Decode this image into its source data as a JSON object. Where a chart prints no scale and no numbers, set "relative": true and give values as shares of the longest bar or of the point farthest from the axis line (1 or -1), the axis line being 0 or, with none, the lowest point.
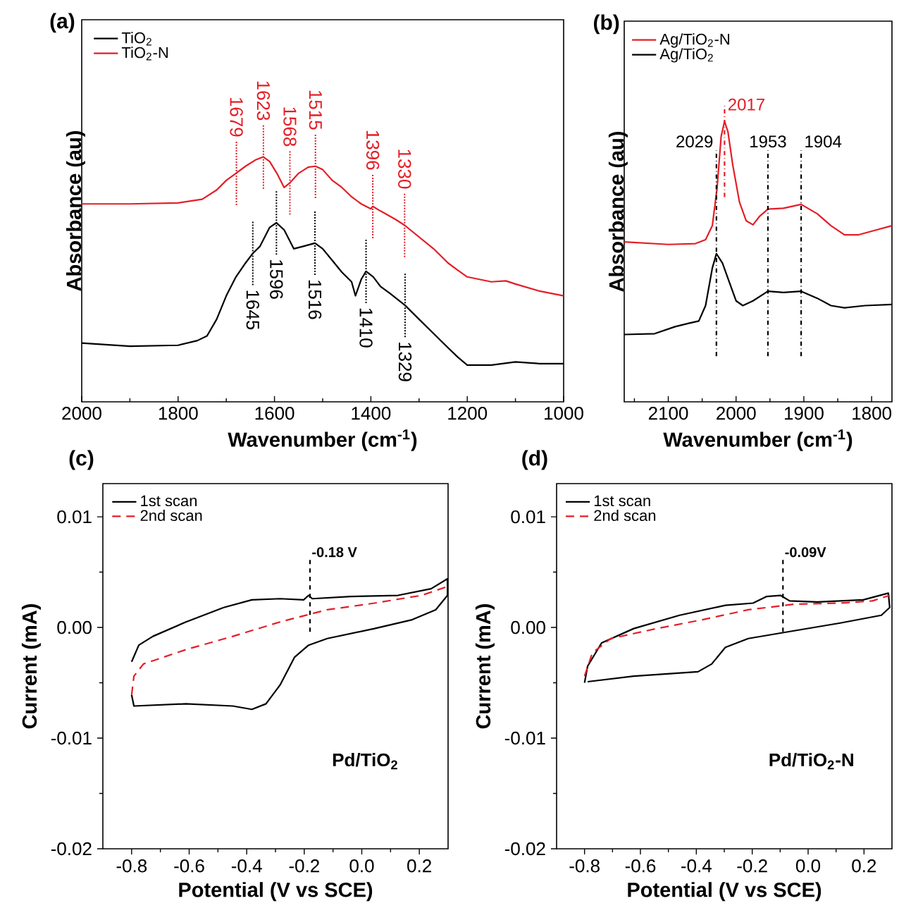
{
  "chart_data": [
    {
      "type": "line",
      "title": "(a)",
      "xlabel": "Wavenumber (cm$^{-1}$)",
      "ylabel": "Absorbance (au)",
      "relative": true,
      "legend": "top left",
      "xlim": [
        2000,
        1000
      ],
      "xticks": [
        2000,
        {
          "value": 1900,
          "label": null
        },
        1800,
        {
          "value": 1700,
          "label": null
        },
        1600,
        {
          "value": 1500,
          "label": null
        },
        1400,
        {
          "value": 1300,
          "label": null
        },
        1200,
        {
          "value": 1100,
          "label": null
        },
        1000
      ],
      "series": [
        {
          "name": "TiO$_{2}$",
          "color": "#000000",
          "x": [
            2000,
            1900,
            1800,
            1760,
            1740,
            1720,
            1700,
            1680,
            1660,
            1645,
            1630,
            1610,
            1596,
            1580,
            1560,
            1540,
            1516,
            1500,
            1480,
            1460,
            1440,
            1432,
            1420,
            1410,
            1395,
            1380,
            1360,
            1329,
            1300,
            1270,
            1240,
            1220,
            1200,
            1150,
            1100,
            1050,
            1000
          ],
          "values": [
            0.24,
            0.227,
            0.231,
            0.25,
            0.269,
            0.337,
            0.433,
            0.51,
            0.567,
            0.606,
            0.635,
            0.712,
            0.731,
            0.702,
            0.625,
            0.635,
            0.648,
            0.625,
            0.577,
            0.529,
            0.49,
            0.433,
            0.5,
            0.533,
            0.51,
            0.471,
            0.442,
            0.394,
            0.337,
            0.279,
            0.221,
            0.183,
            0.15,
            0.15,
            0.163,
            0.156,
            0.156
          ]
        },
        {
          "name": "TiO$_{2}$-N",
          "color": "#e41e26",
          "x": [
            2000,
            1900,
            1800,
            1750,
            1720,
            1700,
            1680,
            1660,
            1640,
            1623,
            1610,
            1595,
            1580,
            1568,
            1550,
            1530,
            1515,
            1500,
            1480,
            1460,
            1440,
            1420,
            1400,
            1396,
            1380,
            1350,
            1330,
            1300,
            1270,
            1240,
            1220,
            1200,
            1150,
            1120,
            1100,
            1050,
            1000
          ],
          "values": [
            0.808,
            0.808,
            0.812,
            0.827,
            0.865,
            0.904,
            0.933,
            0.962,
            0.987,
            1.0,
            0.981,
            0.933,
            0.875,
            0.894,
            0.933,
            0.958,
            0.962,
            0.948,
            0.904,
            0.875,
            0.837,
            0.808,
            0.788,
            0.798,
            0.779,
            0.746,
            0.721,
            0.673,
            0.625,
            0.567,
            0.538,
            0.51,
            0.49,
            0.494,
            0.481,
            0.452,
            0.433
          ]
        }
      ],
      "annotations": [
        {
          "text": "1679",
          "x": 1679,
          "y": 0.933
        },
        {
          "text": "1623",
          "x": 1623,
          "y": 1.0
        },
        {
          "text": "1568",
          "x": 1568,
          "y": 0.894
        },
        {
          "text": "1515",
          "x": 1515,
          "y": 0.962
        },
        {
          "text": "1396",
          "x": 1396,
          "y": 0.798
        },
        {
          "text": "1330",
          "x": 1330,
          "y": 0.721
        },
        {
          "text": "1645",
          "x": 1645,
          "y": 0.606
        },
        {
          "text": "1596",
          "x": 1596,
          "y": 0.731
        },
        {
          "text": "1516",
          "x": 1516,
          "y": 0.648
        },
        {
          "text": "1410",
          "x": 1410,
          "y": 0.533
        },
        {
          "text": "1329",
          "x": 1329,
          "y": 0.394
        }
      ]
    },
    {
      "type": "line",
      "title": "(b)",
      "xlabel": "Wavenumber (cm$^{-1}$)",
      "ylabel": "Absorbance (au)",
      "relative": true,
      "legend": "top left",
      "xlim": [
        2165,
        1770
      ],
      "xticks": [
        {
          "value": 2150,
          "label": null
        },
        2100,
        {
          "value": 2050,
          "label": null
        },
        2000,
        {
          "value": 1950,
          "label": null
        },
        1900,
        {
          "value": 1850,
          "label": null
        },
        1800
      ],
      "series": [
        {
          "name": "Ag/TiO$_{2}$-N",
          "color": "#e41e26",
          "x": [
            2165,
            2100,
            2060,
            2045,
            2035,
            2028,
            2022,
            2017,
            2012,
            2005,
            1995,
            1985,
            1975,
            1965,
            1953,
            1930,
            1904,
            1880,
            1860,
            1840,
            1820,
            1800,
            1770
          ],
          "values": [
            0.57,
            0.561,
            0.564,
            0.578,
            0.628,
            0.762,
            0.946,
            1.0,
            0.963,
            0.846,
            0.712,
            0.645,
            0.631,
            0.662,
            0.687,
            0.69,
            0.704,
            0.67,
            0.628,
            0.595,
            0.595,
            0.608,
            0.628
          ]
        },
        {
          "name": "Ag/TiO$_{2}$",
          "color": "#000000",
          "x": [
            2165,
            2120,
            2090,
            2070,
            2055,
            2045,
            2035,
            2029,
            2020,
            2010,
            2000,
            1990,
            1975,
            1953,
            1930,
            1904,
            1880,
            1860,
            1840,
            1810,
            1770
          ],
          "values": [
            0.24,
            0.243,
            0.268,
            0.28,
            0.288,
            0.343,
            0.477,
            0.528,
            0.494,
            0.427,
            0.36,
            0.343,
            0.36,
            0.394,
            0.39,
            0.394,
            0.369,
            0.343,
            0.335,
            0.343,
            0.347
          ]
        }
      ],
      "annotations": [
        {
          "text": "2017",
          "x": 2017,
          "y": 1.0
        }
      ],
      "ref_lines": [
        {
          "axis": "x",
          "value": 2029,
          "label": "2029",
          "color": "#000000"
        },
        {
          "axis": "x",
          "value": 1953,
          "label": "1953",
          "color": "#000000"
        },
        {
          "axis": "x",
          "value": 1904,
          "label": "1904",
          "color": "#000000"
        }
      ]
    },
    {
      "type": "line",
      "title": "(c)",
      "xlabel": "Potential (V vs SCE)",
      "ylabel": "Current (mA)",
      "legend": "top left",
      "xlim": [
        -0.9,
        0.3
      ],
      "ylim": [
        -0.02,
        0.013
      ],
      "xticks": [
        -0.8,
        {
          "value": -0.7,
          "label": null
        },
        -0.6,
        {
          "value": -0.5,
          "label": null
        },
        -0.4,
        {
          "value": -0.3,
          "label": null
        },
        -0.2,
        {
          "value": -0.1,
          "label": null
        },
        {
          "value": 0.0,
          "label": "0.0"
        },
        {
          "value": 0.1,
          "label": null
        },
        0.2
      ],
      "yticks": [
        -0.02,
        {
          "value": -0.015,
          "label": null
        },
        -0.01,
        {
          "value": -0.005,
          "label": null
        },
        {
          "value": 0.0,
          "label": "0.00"
        },
        {
          "value": 0.005,
          "label": null
        },
        0.01
      ],
      "series": [
        {
          "name": "1st scan",
          "color": "#000000",
          "x": [
            -0.8,
            -0.775,
            -0.726,
            -0.611,
            -0.48,
            -0.382,
            -0.284,
            -0.202,
            -0.185,
            -0.172,
            -0.038,
            0.126,
            0.241,
            0.298,
            0.298,
            0.257,
            0.175,
            0.044,
            -0.12,
            -0.185,
            -0.234,
            -0.284,
            -0.333,
            -0.382,
            -0.448,
            -0.611,
            -0.792,
            -0.8
          ],
          "values": [
            -0.0031,
            -0.0016,
            -0.0008,
            0.0005,
            0.0018,
            0.0025,
            0.0026,
            0.0025,
            0.0029,
            0.0026,
            0.0028,
            0.0029,
            0.0035,
            0.0044,
            0.0029,
            0.0016,
            0.0007,
            -0.0001,
            -0.001,
            -0.0016,
            -0.0027,
            -0.0052,
            -0.0069,
            -0.0074,
            -0.0071,
            -0.0069,
            -0.0071,
            -0.0061
          ]
        },
        {
          "name": "2nd scan",
          "color": "#e41e26",
          "line_style": "dashed",
          "x": [
            -0.8,
            -0.792,
            -0.759,
            -0.611,
            -0.448,
            -0.284,
            -0.12,
            0.044,
            0.208,
            0.298
          ],
          "values": [
            -0.0061,
            -0.0044,
            -0.0033,
            -0.002,
            -0.0008,
            0.0005,
            0.0016,
            0.0022,
            0.0029,
            0.0037
          ]
        }
      ],
      "annotations": [
        {
          "text": "-0.18 V",
          "x": -0.18,
          "y": 0.0029
        },
        "Pd/TiO$_{2}$"
      ]
    },
    {
      "type": "line",
      "title": "(d)",
      "xlabel": "Potential (V vs SCE)",
      "ylabel": "Current (mA)",
      "legend": "top left",
      "xlim": [
        -0.9,
        0.3
      ],
      "ylim": [
        -0.02,
        0.013
      ],
      "xticks": [
        -0.8,
        {
          "value": -0.7,
          "label": null
        },
        -0.6,
        {
          "value": -0.5,
          "label": null
        },
        -0.4,
        {
          "value": -0.3,
          "label": null
        },
        -0.2,
        {
          "value": -0.1,
          "label": null
        },
        {
          "value": 0.0,
          "label": "0.0"
        },
        {
          "value": 0.1,
          "label": null
        },
        0.2
      ],
      "yticks": [
        -0.02,
        {
          "value": -0.015,
          "label": null
        },
        -0.01,
        {
          "value": -0.005,
          "label": null
        },
        {
          "value": 0.0,
          "label": "0.00"
        },
        {
          "value": 0.005,
          "label": null
        },
        0.01
      ],
      "series": [
        {
          "name": "1st scan",
          "color": "#000000",
          "x": [
            -0.8,
            -0.789,
            -0.739,
            -0.624,
            -0.46,
            -0.296,
            -0.197,
            -0.148,
            -0.099,
            -0.066,
            0.033,
            0.197,
            0.287,
            0.292,
            0.262,
            0.115,
            -0.05,
            -0.214,
            -0.296,
            -0.345,
            -0.394,
            -0.624,
            -0.789
          ],
          "values": [
            -0.005,
            -0.0035,
            -0.0014,
            -0.0001,
            0.0011,
            0.002,
            0.0022,
            0.0028,
            0.0029,
            0.0024,
            0.0023,
            0.0025,
            0.0031,
            0.0018,
            0.0011,
            0.0004,
            -0.0003,
            -0.001,
            -0.0018,
            -0.0033,
            -0.004,
            -0.0044,
            -0.0049
          ]
        },
        {
          "name": "2nd scan",
          "color": "#e41e26",
          "line_style": "dashed",
          "x": [
            -0.8,
            -0.772,
            -0.706,
            -0.542,
            -0.378,
            -0.214,
            -0.05,
            0.115,
            0.23,
            0.292
          ],
          "values": [
            -0.0044,
            -0.0023,
            -0.001,
            -0.0001,
            0.0007,
            0.0016,
            0.0021,
            0.0022,
            0.0024,
            0.0029
          ]
        }
      ],
      "annotations": [
        {
          "text": "-0.09V",
          "x": -0.09,
          "y": 0.0029
        },
        "Pd/TiO$_{2}$-N"
      ]
    }
  ]
}
